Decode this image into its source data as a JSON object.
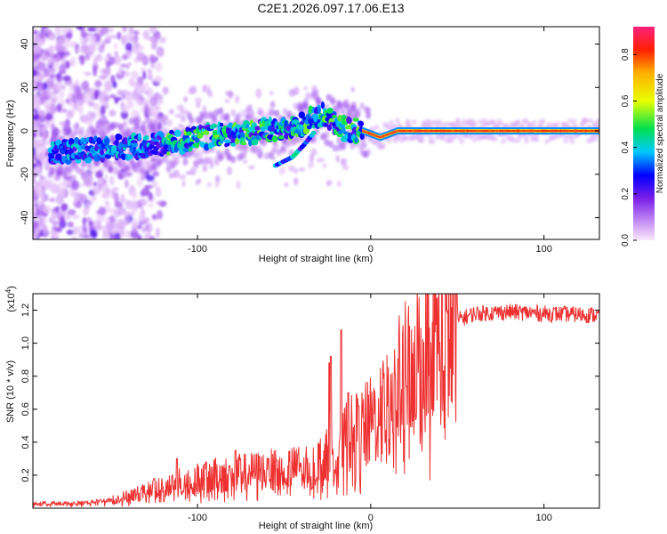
{
  "title": "C2E1.2026.097.17.06.E13",
  "colors": {
    "snr_line": "#ee3030",
    "frame": "#000000",
    "background": "#ffffff"
  },
  "chart_data": [
    {
      "type": "heatmap",
      "name": "spectrogram",
      "xlabel": "Height of straight line (km)",
      "ylabel": "Frequency (Hz)",
      "xlim": [
        -195,
        132
      ],
      "ylim": [
        -50,
        48
      ],
      "x_ticks": [
        -100,
        0,
        100
      ],
      "x_tick_labels": [
        "-100",
        "0",
        "100"
      ],
      "y_ticks": [
        -40,
        -20,
        0,
        20,
        40
      ],
      "y_tick_labels": [
        "-40",
        "-20",
        "0",
        "20",
        "40"
      ],
      "trace": [
        {
          "x": -180,
          "y": -10
        },
        {
          "x": -165,
          "y": -9
        },
        {
          "x": -150,
          "y": -8
        },
        {
          "x": -135,
          "y": -7
        },
        {
          "x": -120,
          "y": -6
        },
        {
          "x": -105,
          "y": -4
        },
        {
          "x": -90,
          "y": -2
        },
        {
          "x": -75,
          "y": -1
        },
        {
          "x": -60,
          "y": 0
        },
        {
          "x": -45,
          "y": 1
        },
        {
          "x": -35,
          "y": 5
        },
        {
          "x": -28,
          "y": 8
        },
        {
          "x": -22,
          "y": 4
        },
        {
          "x": -15,
          "y": 1
        },
        {
          "x": -5,
          "y": 0
        },
        {
          "x": 5,
          "y": -3
        },
        {
          "x": 15,
          "y": 0
        },
        {
          "x": 40,
          "y": 0
        },
        {
          "x": 80,
          "y": 0
        },
        {
          "x": 132,
          "y": 0
        }
      ],
      "side_branch": [
        {
          "x": -55,
          "y": -16
        },
        {
          "x": -45,
          "y": -12
        },
        {
          "x": -38,
          "y": -6
        },
        {
          "x": -32,
          "y": 0
        }
      ],
      "colorbar": {
        "label": "Normalized spectral amplitude",
        "range": [
          0.0,
          0.92
        ],
        "ticks": [
          0.0,
          0.2,
          0.4,
          0.6,
          0.8
        ],
        "tick_labels": [
          "0.0",
          "0.2",
          "0.4",
          "0.6",
          "0.8"
        ],
        "stops": [
          {
            "v": 0.0,
            "c": "#fce8fc"
          },
          {
            "v": 0.08,
            "c": "#c58ff5"
          },
          {
            "v": 0.18,
            "c": "#7a1fe8"
          },
          {
            "v": 0.28,
            "c": "#0000ff"
          },
          {
            "v": 0.38,
            "c": "#00c8ff"
          },
          {
            "v": 0.48,
            "c": "#00e050"
          },
          {
            "v": 0.6,
            "c": "#e8ff00"
          },
          {
            "v": 0.72,
            "c": "#ffb000"
          },
          {
            "v": 0.82,
            "c": "#ff2000"
          },
          {
            "v": 0.92,
            "c": "#ff2080"
          }
        ]
      }
    },
    {
      "type": "line",
      "name": "snr",
      "xlabel": "Height of straight line (km)",
      "ylabel": "SNR (10 * v/v)",
      "multiplier_label": "(x10",
      "multiplier_exp": "4",
      "multiplier_close": ")",
      "xlim": [
        -195,
        132
      ],
      "ylim": [
        0,
        1.3
      ],
      "x_ticks": [
        -100,
        0,
        100
      ],
      "x_tick_labels": [
        "-100",
        "0",
        "100"
      ],
      "y_ticks": [
        0.2,
        0.4,
        0.6,
        0.8,
        1.0,
        1.2
      ],
      "y_tick_labels": [
        "0.2",
        "0.4",
        "0.6",
        "0.8",
        "1.0",
        "1.2"
      ],
      "envelope": [
        {
          "x": -195,
          "y": 0.03
        },
        {
          "x": -170,
          "y": 0.03
        },
        {
          "x": -150,
          "y": 0.05
        },
        {
          "x": -130,
          "y": 0.1
        },
        {
          "x": -110,
          "y": 0.16
        },
        {
          "x": -90,
          "y": 0.2
        },
        {
          "x": -70,
          "y": 0.22
        },
        {
          "x": -50,
          "y": 0.24
        },
        {
          "x": -40,
          "y": 0.25
        },
        {
          "x": -30,
          "y": 0.28
        },
        {
          "x": -20,
          "y": 0.35
        },
        {
          "x": -15,
          "y": 0.42
        },
        {
          "x": -10,
          "y": 0.45
        },
        {
          "x": -5,
          "y": 0.48
        },
        {
          "x": 0,
          "y": 0.52
        },
        {
          "x": 10,
          "y": 0.65
        },
        {
          "x": 20,
          "y": 0.82
        },
        {
          "x": 30,
          "y": 0.95
        },
        {
          "x": 40,
          "y": 1.05
        },
        {
          "x": 50,
          "y": 1.14
        },
        {
          "x": 60,
          "y": 1.18
        },
        {
          "x": 80,
          "y": 1.19
        },
        {
          "x": 100,
          "y": 1.18
        },
        {
          "x": 132,
          "y": 1.17
        }
      ],
      "peaks": [
        {
          "x": -125,
          "y": 0.18
        },
        {
          "x": -112,
          "y": 0.3
        },
        {
          "x": -95,
          "y": 0.28
        },
        {
          "x": -78,
          "y": 0.35
        },
        {
          "x": -59,
          "y": 0.3
        },
        {
          "x": -42,
          "y": 0.33
        },
        {
          "x": -23,
          "y": 0.92
        },
        {
          "x": -24,
          "y": 0.88
        },
        {
          "x": -17,
          "y": 1.08
        },
        {
          "x": -13,
          "y": 0.7
        },
        {
          "x": -7,
          "y": 0.62
        },
        {
          "x": 5,
          "y": 0.5
        }
      ]
    }
  ]
}
